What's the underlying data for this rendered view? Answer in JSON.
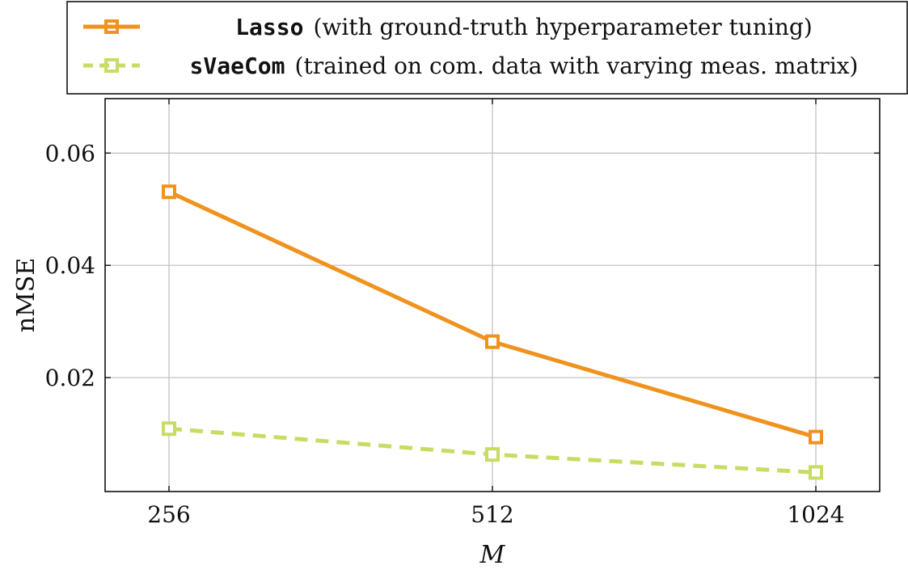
{
  "chart_data": {
    "type": "line",
    "title": "",
    "xlabel": "M",
    "ylabel": "nMSE",
    "x": [
      256,
      512,
      1024
    ],
    "x_tick_labels": [
      "256",
      "512",
      "1024"
    ],
    "y_ticks": [
      0.02,
      0.04,
      0.06
    ],
    "y_tick_labels": [
      "0.02",
      "0.04",
      "0.06"
    ],
    "ylim": [
      -0.0003,
      0.0697
    ],
    "grid": true,
    "legend_position": "top, outside",
    "series": [
      {
        "name": "Lasso",
        "description": "(with ground-truth hyperparameter tuning)",
        "values": [
          0.0531,
          0.0264,
          0.0094
        ],
        "color": "#f0921e",
        "dash": "solid",
        "marker": "square"
      },
      {
        "name": "sVaeCom",
        "description": "(trained on com. data with varying meas. matrix)",
        "values": [
          0.0109,
          0.0063,
          0.0031
        ],
        "color": "#c8dc64",
        "dash": "dashed",
        "marker": "square"
      }
    ]
  }
}
